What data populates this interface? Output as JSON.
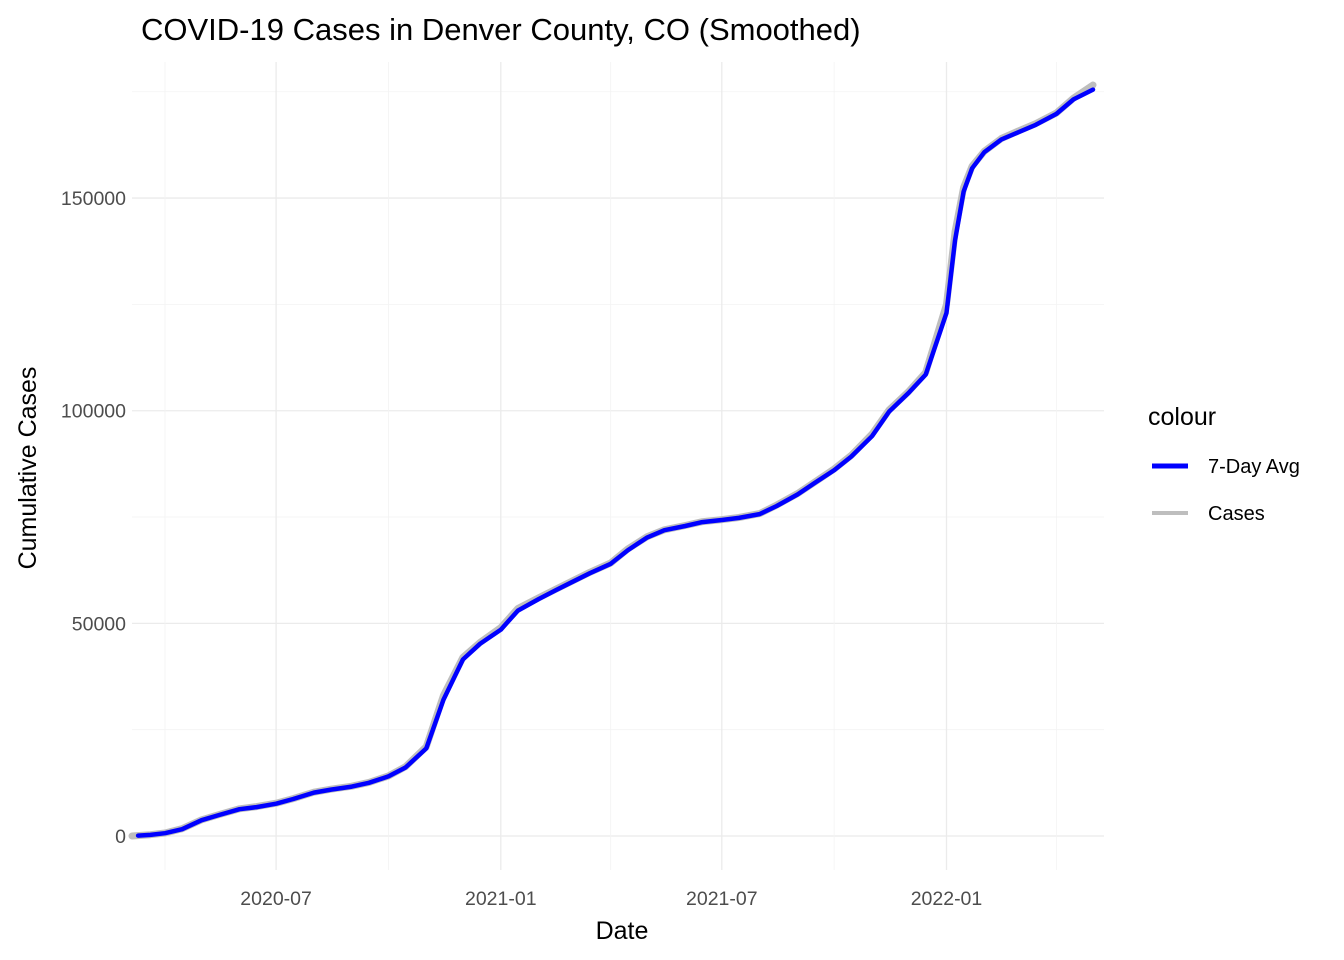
{
  "chart_data": {
    "type": "line",
    "title": "COVID-19 Cases in Denver County, CO (Smoothed)",
    "xlabel": "Date",
    "ylabel": "Cumulative Cases",
    "xlim": [
      "2020-03-05",
      "2022-05-10"
    ],
    "ylim": [
      -8000,
      182000
    ],
    "x_ticks": [
      "2020-07",
      "2021-01",
      "2021-07",
      "2022-01"
    ],
    "y_ticks": [
      0,
      50000,
      100000,
      150000
    ],
    "y_tick_labels": [
      "0",
      "50000",
      "100000",
      "150000"
    ],
    "grid": true,
    "legend": {
      "title": "colour",
      "position": "right",
      "entries": [
        {
          "label": "7-Day Avg",
          "color": "#0000ff"
        },
        {
          "label": "Cases",
          "color": "#bebebe"
        }
      ]
    },
    "series": [
      {
        "name": "Cases",
        "color": "#bebebe",
        "points": [
          [
            "2020-03-05",
            0
          ],
          [
            "2020-03-20",
            300
          ],
          [
            "2020-04-01",
            700
          ],
          [
            "2020-04-15",
            1700
          ],
          [
            "2020-05-01",
            3800
          ],
          [
            "2020-05-15",
            5000
          ],
          [
            "2020-06-01",
            6400
          ],
          [
            "2020-06-15",
            6900
          ],
          [
            "2020-07-01",
            7700
          ],
          [
            "2020-07-15",
            8800
          ],
          [
            "2020-08-01",
            10300
          ],
          [
            "2020-08-15",
            11000
          ],
          [
            "2020-09-01",
            11700
          ],
          [
            "2020-09-15",
            12600
          ],
          [
            "2020-10-01",
            14100
          ],
          [
            "2020-10-15",
            16300
          ],
          [
            "2020-11-01",
            21000
          ],
          [
            "2020-11-15",
            33000
          ],
          [
            "2020-12-01",
            42000
          ],
          [
            "2020-12-15",
            45500
          ],
          [
            "2021-01-01",
            49000
          ],
          [
            "2021-01-15",
            53500
          ],
          [
            "2021-02-01",
            56000
          ],
          [
            "2021-02-15",
            58000
          ],
          [
            "2021-03-01",
            60000
          ],
          [
            "2021-03-15",
            62000
          ],
          [
            "2021-04-01",
            64200
          ],
          [
            "2021-04-15",
            67500
          ],
          [
            "2021-05-01",
            70400
          ],
          [
            "2021-05-15",
            72000
          ],
          [
            "2021-06-01",
            73000
          ],
          [
            "2021-06-15",
            73900
          ],
          [
            "2021-07-01",
            74400
          ],
          [
            "2021-07-15",
            74900
          ],
          [
            "2021-08-01",
            75800
          ],
          [
            "2021-08-15",
            77800
          ],
          [
            "2021-09-01",
            80500
          ],
          [
            "2021-09-15",
            83200
          ],
          [
            "2021-10-01",
            86300
          ],
          [
            "2021-10-15",
            89500
          ],
          [
            "2021-11-01",
            94500
          ],
          [
            "2021-11-15",
            100200
          ],
          [
            "2021-12-01",
            104500
          ],
          [
            "2021-12-15",
            109000
          ],
          [
            "2022-01-01",
            125000
          ],
          [
            "2022-01-08",
            142000
          ],
          [
            "2022-01-15",
            152500
          ],
          [
            "2022-01-22",
            157500
          ],
          [
            "2022-02-01",
            161000
          ],
          [
            "2022-02-15",
            164000
          ],
          [
            "2022-03-01",
            165800
          ],
          [
            "2022-03-15",
            167500
          ],
          [
            "2022-04-01",
            170000
          ],
          [
            "2022-04-15",
            173500
          ],
          [
            "2022-05-01",
            176600
          ]
        ]
      },
      {
        "name": "7-Day Avg",
        "color": "#0000ff",
        "points": [
          [
            "2020-03-10",
            100
          ],
          [
            "2020-03-20",
            250
          ],
          [
            "2020-04-01",
            650
          ],
          [
            "2020-04-15",
            1600
          ],
          [
            "2020-05-01",
            3700
          ],
          [
            "2020-05-15",
            4900
          ],
          [
            "2020-06-01",
            6300
          ],
          [
            "2020-06-15",
            6800
          ],
          [
            "2020-07-01",
            7600
          ],
          [
            "2020-07-15",
            8700
          ],
          [
            "2020-08-01",
            10200
          ],
          [
            "2020-08-15",
            10900
          ],
          [
            "2020-09-01",
            11600
          ],
          [
            "2020-09-15",
            12500
          ],
          [
            "2020-10-01",
            14000
          ],
          [
            "2020-10-15",
            16100
          ],
          [
            "2020-11-01",
            20600
          ],
          [
            "2020-11-15",
            32000
          ],
          [
            "2020-12-01",
            41500
          ],
          [
            "2020-12-15",
            45200
          ],
          [
            "2021-01-01",
            48500
          ],
          [
            "2021-01-15",
            53000
          ],
          [
            "2021-02-01",
            55700
          ],
          [
            "2021-02-15",
            57800
          ],
          [
            "2021-03-01",
            59800
          ],
          [
            "2021-03-15",
            61800
          ],
          [
            "2021-04-01",
            64000
          ],
          [
            "2021-04-15",
            67200
          ],
          [
            "2021-05-01",
            70200
          ],
          [
            "2021-05-15",
            71900
          ],
          [
            "2021-06-01",
            72900
          ],
          [
            "2021-06-15",
            73800
          ],
          [
            "2021-07-01",
            74300
          ],
          [
            "2021-07-15",
            74800
          ],
          [
            "2021-08-01",
            75700
          ],
          [
            "2021-08-15",
            77600
          ],
          [
            "2021-09-01",
            80300
          ],
          [
            "2021-09-15",
            83000
          ],
          [
            "2021-10-01",
            86000
          ],
          [
            "2021-10-15",
            89200
          ],
          [
            "2021-11-01",
            94000
          ],
          [
            "2021-11-15",
            99800
          ],
          [
            "2021-12-01",
            104200
          ],
          [
            "2021-12-15",
            108500
          ],
          [
            "2022-01-01",
            123000
          ],
          [
            "2022-01-08",
            140000
          ],
          [
            "2022-01-15",
            151500
          ],
          [
            "2022-01-22",
            157000
          ],
          [
            "2022-02-01",
            160800
          ],
          [
            "2022-02-15",
            163800
          ],
          [
            "2022-03-01",
            165500
          ],
          [
            "2022-03-15",
            167200
          ],
          [
            "2022-04-01",
            169800
          ],
          [
            "2022-04-15",
            173200
          ],
          [
            "2022-05-01",
            175500
          ]
        ]
      }
    ]
  }
}
